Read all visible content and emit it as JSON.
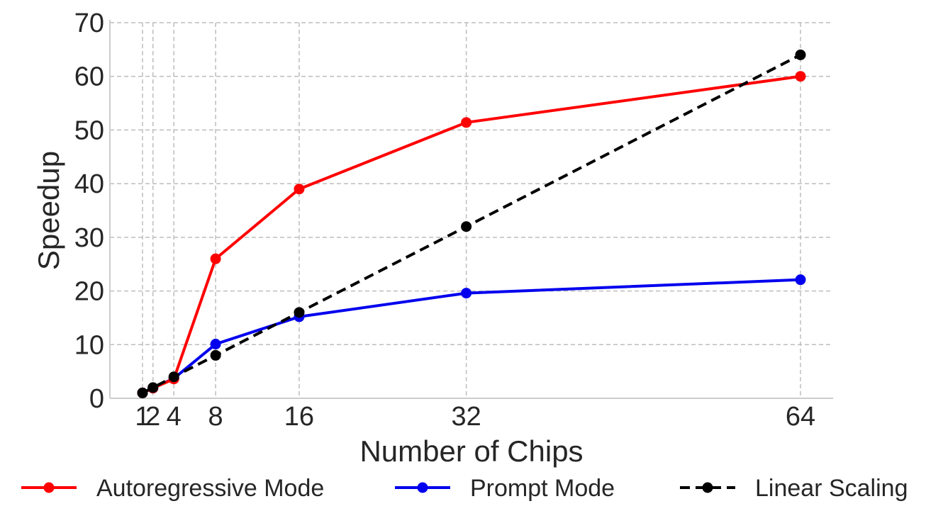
{
  "chart_data": {
    "type": "line",
    "xlabel": "Number of Chips",
    "ylabel": "Speedup",
    "x": [
      1,
      2,
      4,
      8,
      16,
      32,
      64
    ],
    "x_ticks": [
      1,
      2,
      4,
      8,
      16,
      32,
      64
    ],
    "y_ticks": [
      0,
      10,
      20,
      30,
      40,
      50,
      60,
      70
    ],
    "xlim": [
      1,
      64
    ],
    "ylim": [
      0,
      70
    ],
    "grid": true,
    "legend_placement": "bottom",
    "series": [
      {
        "name": "Autoregressive Mode",
        "color": "#ff0000",
        "style": "solid",
        "values": [
          1,
          1.9,
          3.6,
          26,
          39,
          51.4,
          60
        ]
      },
      {
        "name": "Prompt Mode",
        "color": "#0000ee",
        "style": "solid",
        "values": [
          1,
          1.9,
          3.7,
          10.1,
          15.2,
          19.6,
          22.1
        ]
      },
      {
        "name": "Linear Scaling",
        "color": "#000000",
        "style": "dashed",
        "values": [
          1,
          2,
          4,
          8,
          16,
          32,
          64
        ]
      }
    ]
  }
}
